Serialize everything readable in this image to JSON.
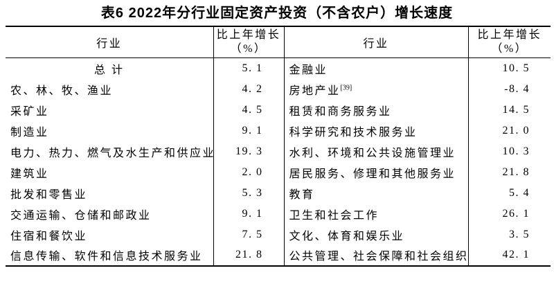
{
  "document": {
    "title": "表6  2022年分行业固定资产投资（不含农户）增长速度"
  },
  "table": {
    "header": {
      "industry": "行业",
      "growth_line1": "比上年增长",
      "growth_line2": "（%）"
    },
    "rows": [
      {
        "left_industry": "总 计",
        "left_value": "5. 1",
        "right_industry": "金融业",
        "right_value": "10. 5"
      },
      {
        "left_industry": "农、林、牧、渔业",
        "left_value": "4. 2",
        "right_industry": "房地产业",
        "right_note": "[39]",
        "right_value": "-8. 4"
      },
      {
        "left_industry": "采矿业",
        "left_value": "4. 5",
        "right_industry": "租赁和商务服务业",
        "right_value": "14. 5"
      },
      {
        "left_industry": "制造业",
        "left_value": "9. 1",
        "right_industry": "科学研究和技术服务业",
        "right_value": "21. 0"
      },
      {
        "left_industry": "电力、热力、燃气及水生产和供应业",
        "left_value": "19. 3",
        "right_industry": "水利、环境和公共设施管理业",
        "right_value": "10. 3"
      },
      {
        "left_industry": "建筑业",
        "left_value": "2. 0",
        "right_industry": "居民服务、修理和其他服务业",
        "right_value": "21. 8"
      },
      {
        "left_industry": "批发和零售业",
        "left_value": "5. 3",
        "right_industry": "教育",
        "right_value": "5. 4"
      },
      {
        "left_industry": "交通运输、仓储和邮政业",
        "left_value": "9. 1",
        "right_industry": "卫生和社会工作",
        "right_value": "26. 1"
      },
      {
        "left_industry": "住宿和餐饮业",
        "left_value": "7. 5",
        "right_industry": "文化、体育和娱乐业",
        "right_value": "3. 5"
      },
      {
        "left_industry": "信息传输、软件和信息技术服务业",
        "left_value": "21. 8",
        "right_industry": "公共管理、社会保障和社会组织",
        "right_value": "42. 1"
      }
    ],
    "colors": {
      "text": "#000000",
      "background": "#ffffff",
      "border": "#000000"
    }
  }
}
